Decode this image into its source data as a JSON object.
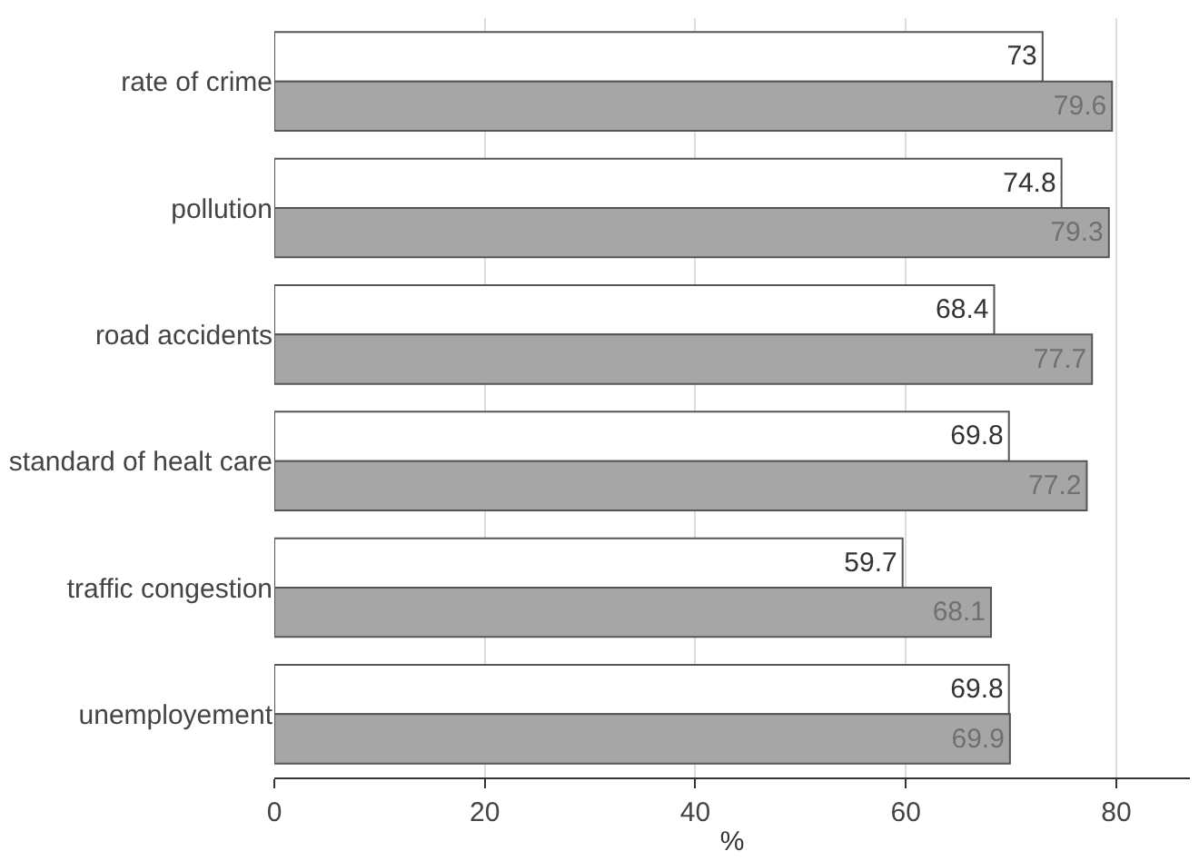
{
  "chart_data": {
    "type": "bar",
    "orientation": "horizontal",
    "xlabel": "%",
    "categories": [
      "rate of crime",
      "pollution",
      "road accidents",
      "standard of healt care",
      "traffic congestion",
      "unemployement"
    ],
    "series": [
      {
        "color": "#ffffff",
        "values": [
          73,
          74.8,
          68.4,
          69.8,
          59.7,
          69.8
        ]
      },
      {
        "color": "#a6a6a6",
        "values": [
          79.6,
          79.3,
          77.7,
          77.2,
          68.1,
          69.9
        ]
      }
    ],
    "xlim": [
      0,
      87
    ],
    "xticks": [
      0,
      20,
      40,
      60,
      80
    ],
    "grid": "x",
    "data_labels": true
  }
}
